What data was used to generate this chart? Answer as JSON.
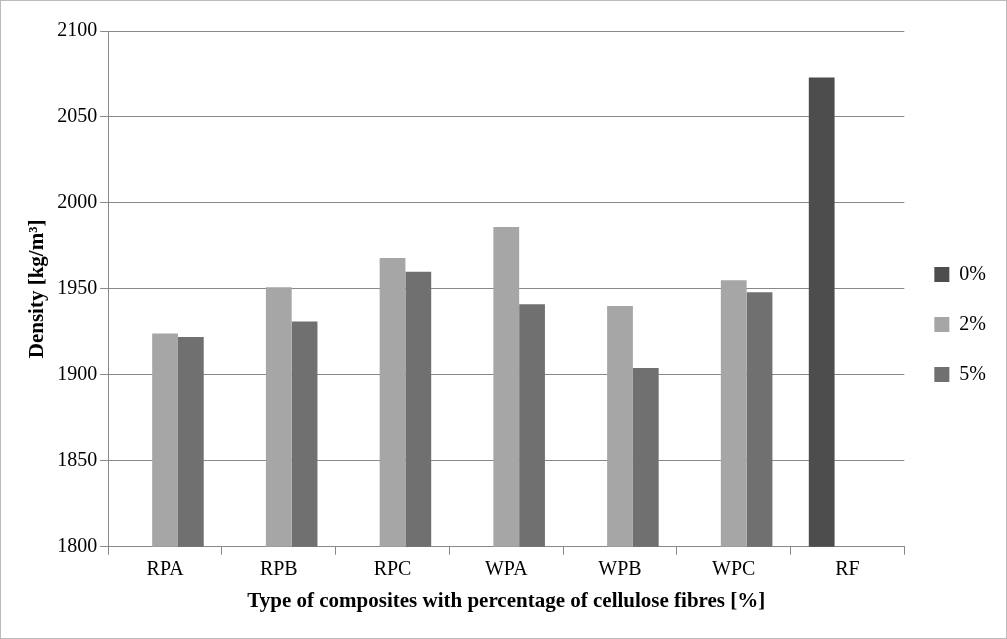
{
  "chart_data": {
    "type": "bar",
    "xlabel": "Type of composites with percentage of cellulose fibres [%]",
    "ylabel": "Density [kg/m³]",
    "categories": [
      "RPA",
      "RPB",
      "RPC",
      "WPA",
      "WPB",
      "WPC",
      "RF"
    ],
    "series": [
      {
        "name": "0%",
        "color": "#4d4d4d",
        "values": [
          null,
          null,
          null,
          null,
          null,
          null,
          2073
        ]
      },
      {
        "name": "2%",
        "color": "#a6a6a6",
        "values": [
          1924,
          1951,
          1968,
          1986,
          1940,
          1955,
          null
        ]
      },
      {
        "name": "5%",
        "color": "#707070",
        "values": [
          1922,
          1931,
          1960,
          1941,
          1904,
          1948,
          null
        ]
      }
    ],
    "ylim": [
      1800,
      2100
    ],
    "yticks": [
      1800,
      1850,
      1900,
      1950,
      2000,
      2050,
      2100
    ],
    "grid": "y",
    "legend": "right"
  }
}
